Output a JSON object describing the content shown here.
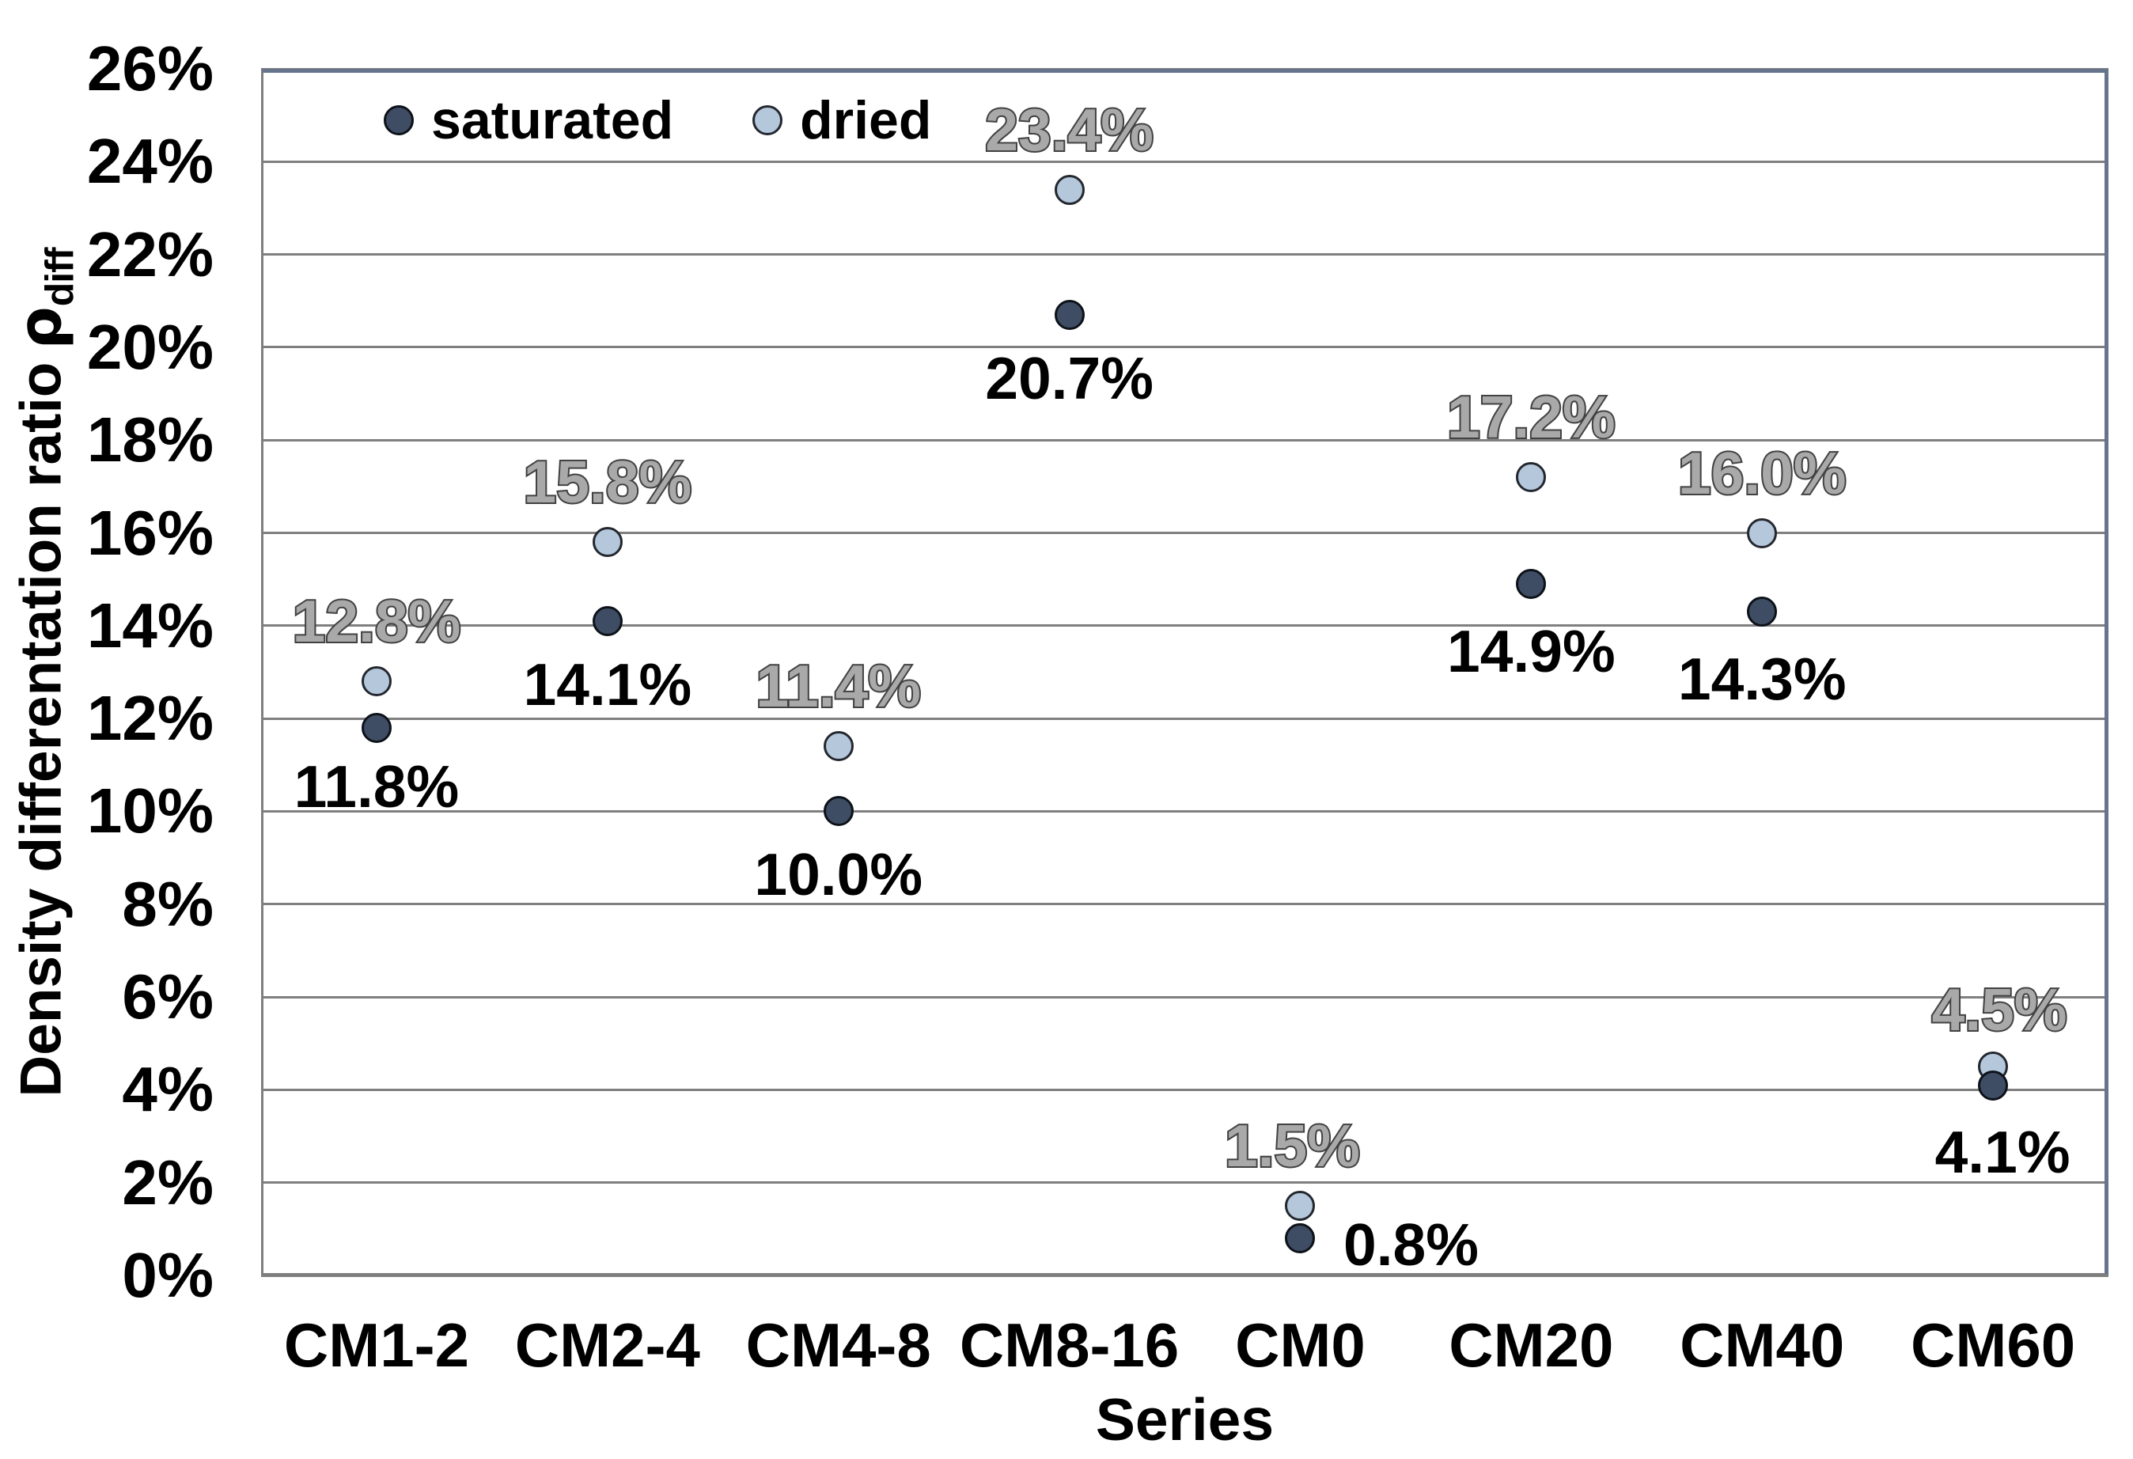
{
  "chart_data": {
    "type": "scatter",
    "xlabel": "Series",
    "ylabel": "Density differentation ratio",
    "ylabel_symbol": "ρ",
    "ylabel_symbol_sub": "diff",
    "categories": [
      "CM1-2",
      "CM2-4",
      "CM4-8",
      "CM8-16",
      "CM0",
      "CM20",
      "CM40",
      "CM60"
    ],
    "y_axis": {
      "min": 0,
      "max": 26,
      "step": 2,
      "tick_suffix": "%"
    },
    "y_ticks": [
      "0%",
      "2%",
      "4%",
      "6%",
      "8%",
      "10%",
      "12%",
      "14%",
      "16%",
      "18%",
      "20%",
      "22%",
      "24%",
      "26%"
    ],
    "grid": true,
    "legend_position": "top-left-inside",
    "colors": {
      "gridline": "#7f7f7f",
      "plot_border": "#66758c",
      "background": "#ffffff"
    },
    "series": [
      {
        "name": "saturated",
        "color": "#3e4d63",
        "outline": "#0d1219",
        "label_color": "#000000",
        "values": [
          11.8,
          14.1,
          10.0,
          20.7,
          0.8,
          14.9,
          14.3,
          4.1
        ],
        "labels": [
          "11.8%",
          "14.1%",
          "10.0%",
          "20.7%",
          "0.8%",
          "14.9%",
          "14.3%",
          "4.1%"
        ],
        "label_offsets": [
          [
            0,
            74
          ],
          [
            0,
            80
          ],
          [
            0,
            80
          ],
          [
            0,
            80
          ],
          [
            140,
            8
          ],
          [
            0,
            85
          ],
          [
            0,
            85
          ],
          [
            12,
            84
          ]
        ]
      },
      {
        "name": "dried",
        "color": "#b5c7db",
        "outline": "#23272e",
        "label_color": "#a9a9a9",
        "label_outline": "#414141",
        "values": [
          12.8,
          15.8,
          11.4,
          23.4,
          1.5,
          17.2,
          16.0,
          4.5
        ],
        "labels": [
          "12.8%",
          "15.8%",
          "11.4%",
          "23.4%",
          "1.5%",
          "17.2%",
          "16.0%",
          "4.5%"
        ],
        "label_offsets": [
          [
            0,
            -76
          ],
          [
            0,
            -76
          ],
          [
            0,
            -76
          ],
          [
            0,
            -76
          ],
          [
            -10,
            -76
          ],
          [
            0,
            -76
          ],
          [
            0,
            -76
          ],
          [
            8,
            -72
          ]
        ]
      }
    ]
  }
}
